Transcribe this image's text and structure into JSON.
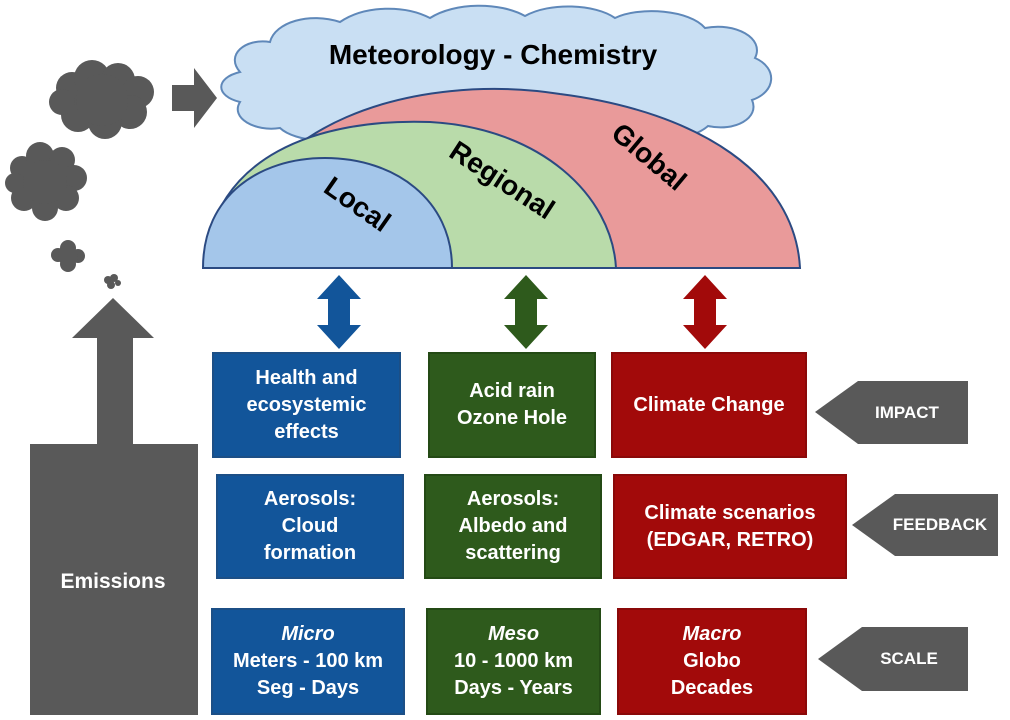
{
  "title": "Meteorology - Chemistry",
  "scales": {
    "local": "Local",
    "regional": "Regional",
    "global": "Global"
  },
  "emissions_label": "Emissions",
  "rows": {
    "impact": {
      "tag": "IMPACT",
      "local": [
        "Health and",
        "ecosystemic",
        "effects"
      ],
      "regional": [
        "Acid rain",
        "Ozone Hole"
      ],
      "global": [
        "Climate Change"
      ]
    },
    "feedback": {
      "tag": "FEEDBACK",
      "local": [
        "Aerosols:",
        "Cloud",
        "formation"
      ],
      "regional": [
        "Aerosols:",
        "Albedo and",
        "scattering"
      ],
      "global": [
        "Climate scenarios",
        "(EDGAR, RETRO)"
      ]
    },
    "scale": {
      "tag": "SCALE",
      "local": [
        "Micro",
        "Meters - 100 km",
        "Seg - Days"
      ],
      "regional": [
        "Meso",
        "10 - 1000 km",
        "Days - Years"
      ],
      "global": [
        "Macro",
        "Globo",
        "Decades"
      ]
    }
  },
  "colors": {
    "local_dome": "#a4c6ea",
    "regional_dome": "#b9dbaa",
    "global_dome": "#e99a9a",
    "dome_stroke": "#2b4a82",
    "cloud_fill": "#c9dff3",
    "cloud_stroke": "#5f88b9",
    "smoke": "#595959",
    "local_box": "#12559a",
    "regional_box": "#2e5a1c",
    "global_box": "#a20a0a",
    "tag_fill": "#595959",
    "arrow_blue": "#12559a",
    "arrow_green": "#2e5a1c",
    "arrow_red": "#a20a0a"
  },
  "icons": {
    "smoke": "smoke-cloud-icon",
    "emission_arrow": "up-arrow-icon",
    "wind_arrow": "right-arrow-icon",
    "link_arrows": "double-arrow-icon"
  }
}
